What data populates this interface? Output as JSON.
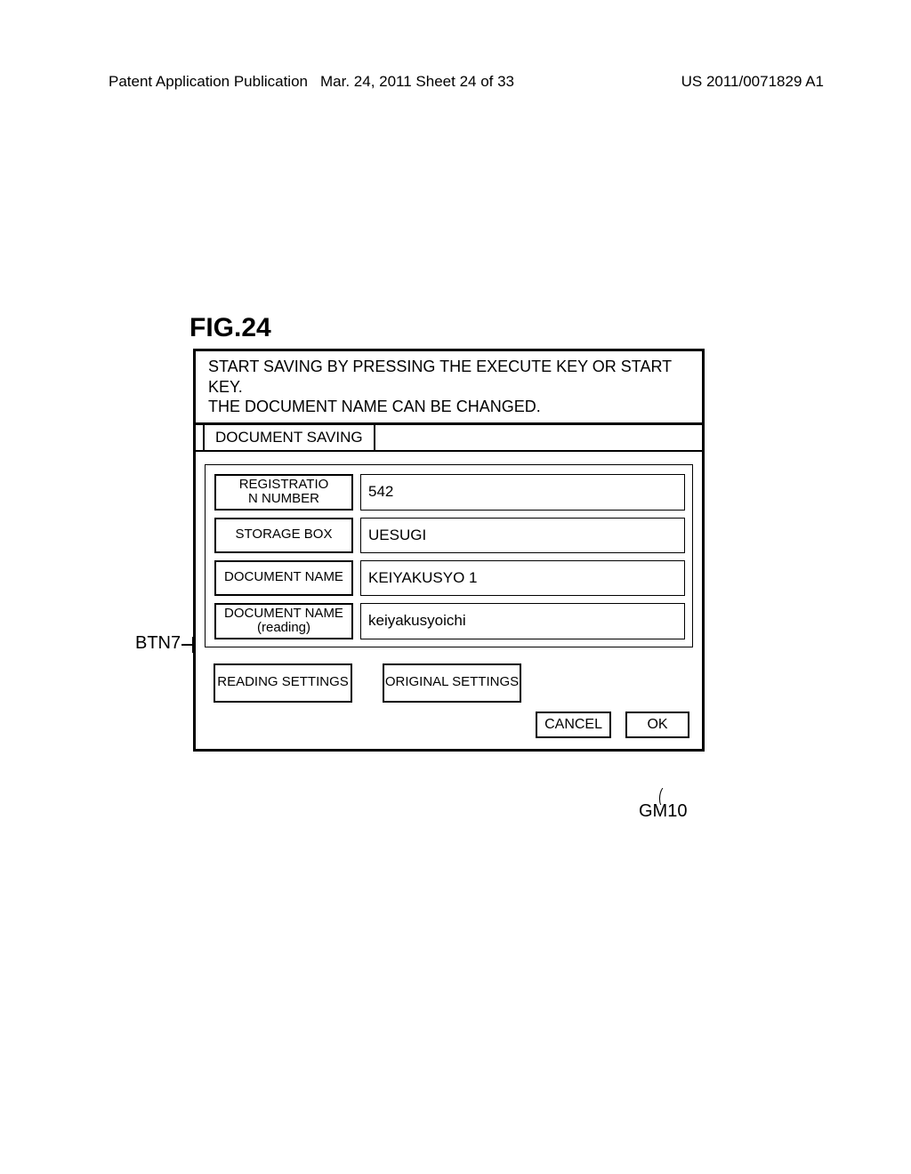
{
  "header": {
    "left": "Patent Application Publication",
    "center": "Mar. 24, 2011  Sheet 24 of 33",
    "right": "US 2011/0071829 A1"
  },
  "figure_label": "FIG.24",
  "callout_btn7": "BTN7",
  "callout_gm10": "GM10",
  "dialog": {
    "instruction_line1": "START SAVING BY PRESSING THE EXECUTE KEY OR START KEY.",
    "instruction_line2": "THE DOCUMENT NAME CAN BE CHANGED.",
    "tab_label": "DOCUMENT SAVING",
    "fields": {
      "registration": {
        "label": "REGISTRATIO\nN NUMBER",
        "value": "542"
      },
      "storage_box": {
        "label": "STORAGE BOX",
        "value": "UESUGI"
      },
      "document_name": {
        "label": "DOCUMENT NAME",
        "value": "KEIYAKUSYO 1"
      },
      "document_name_reading": {
        "label": "DOCUMENT NAME (reading)",
        "value": "keiyakusyoichi"
      }
    },
    "settings": {
      "reading": "READING SETTINGS",
      "original": "ORIGINAL SETTINGS"
    },
    "actions": {
      "cancel": "CANCEL",
      "ok": "OK"
    }
  }
}
